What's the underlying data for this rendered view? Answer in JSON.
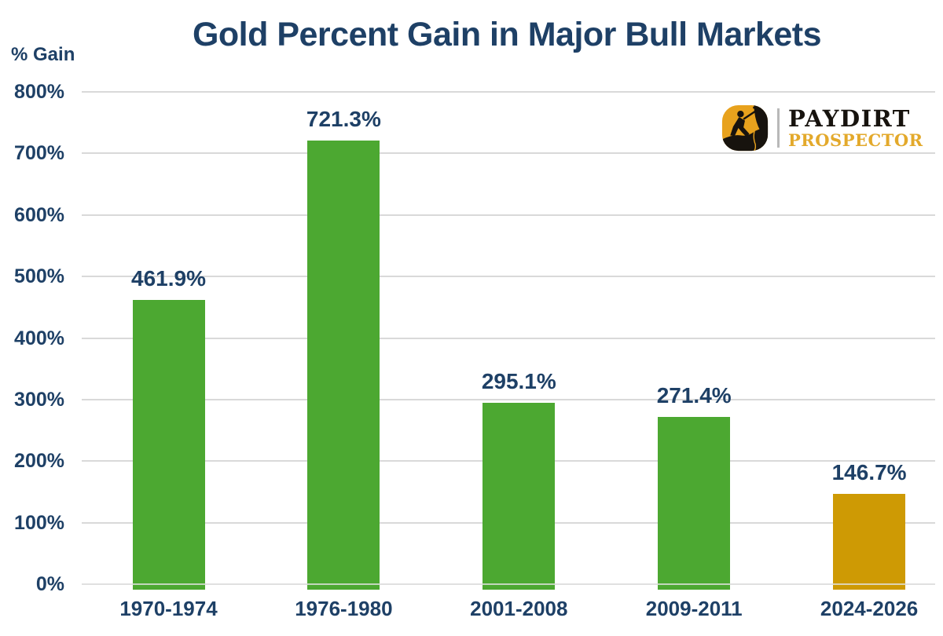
{
  "title": "Gold Percent Gain in Major Bull Markets",
  "y_axis_title": "% Gain",
  "logo": {
    "name": "PAYDIRT",
    "subname": "PROSPECTOR",
    "icon": "miner-with-pickaxe"
  },
  "colors": {
    "navy_text": "#1E4066",
    "green_bar": "#4CA831",
    "gold_bar": "#CE9A04",
    "gridline": "#D9D9D9",
    "logo_black": "#17130E",
    "logo_gold": "#E3A92B",
    "background": "#FFFFFF"
  },
  "chart_data": {
    "type": "bar",
    "title": "Gold Percent Gain in Major Bull Markets",
    "ylabel": "% Gain",
    "xlabel": "",
    "categories": [
      "1970-1974",
      "1976-1980",
      "2001-2008",
      "2009-2011",
      "2024-2026"
    ],
    "values": [
      461.9,
      721.3,
      295.1,
      271.4,
      146.7
    ],
    "data_labels": [
      "461.9%",
      "721.3%",
      "295.1%",
      "271.4%",
      "146.7%"
    ],
    "bar_colors": [
      "#4CA831",
      "#4CA831",
      "#4CA831",
      "#4CA831",
      "#CE9A04"
    ],
    "ylim": [
      0,
      800
    ],
    "ytick_step": 100,
    "ytick_labels": [
      "0%",
      "100%",
      "200%",
      "300%",
      "400%",
      "500%",
      "600%",
      "700%",
      "800%"
    ],
    "grid": true,
    "legend": "none"
  }
}
